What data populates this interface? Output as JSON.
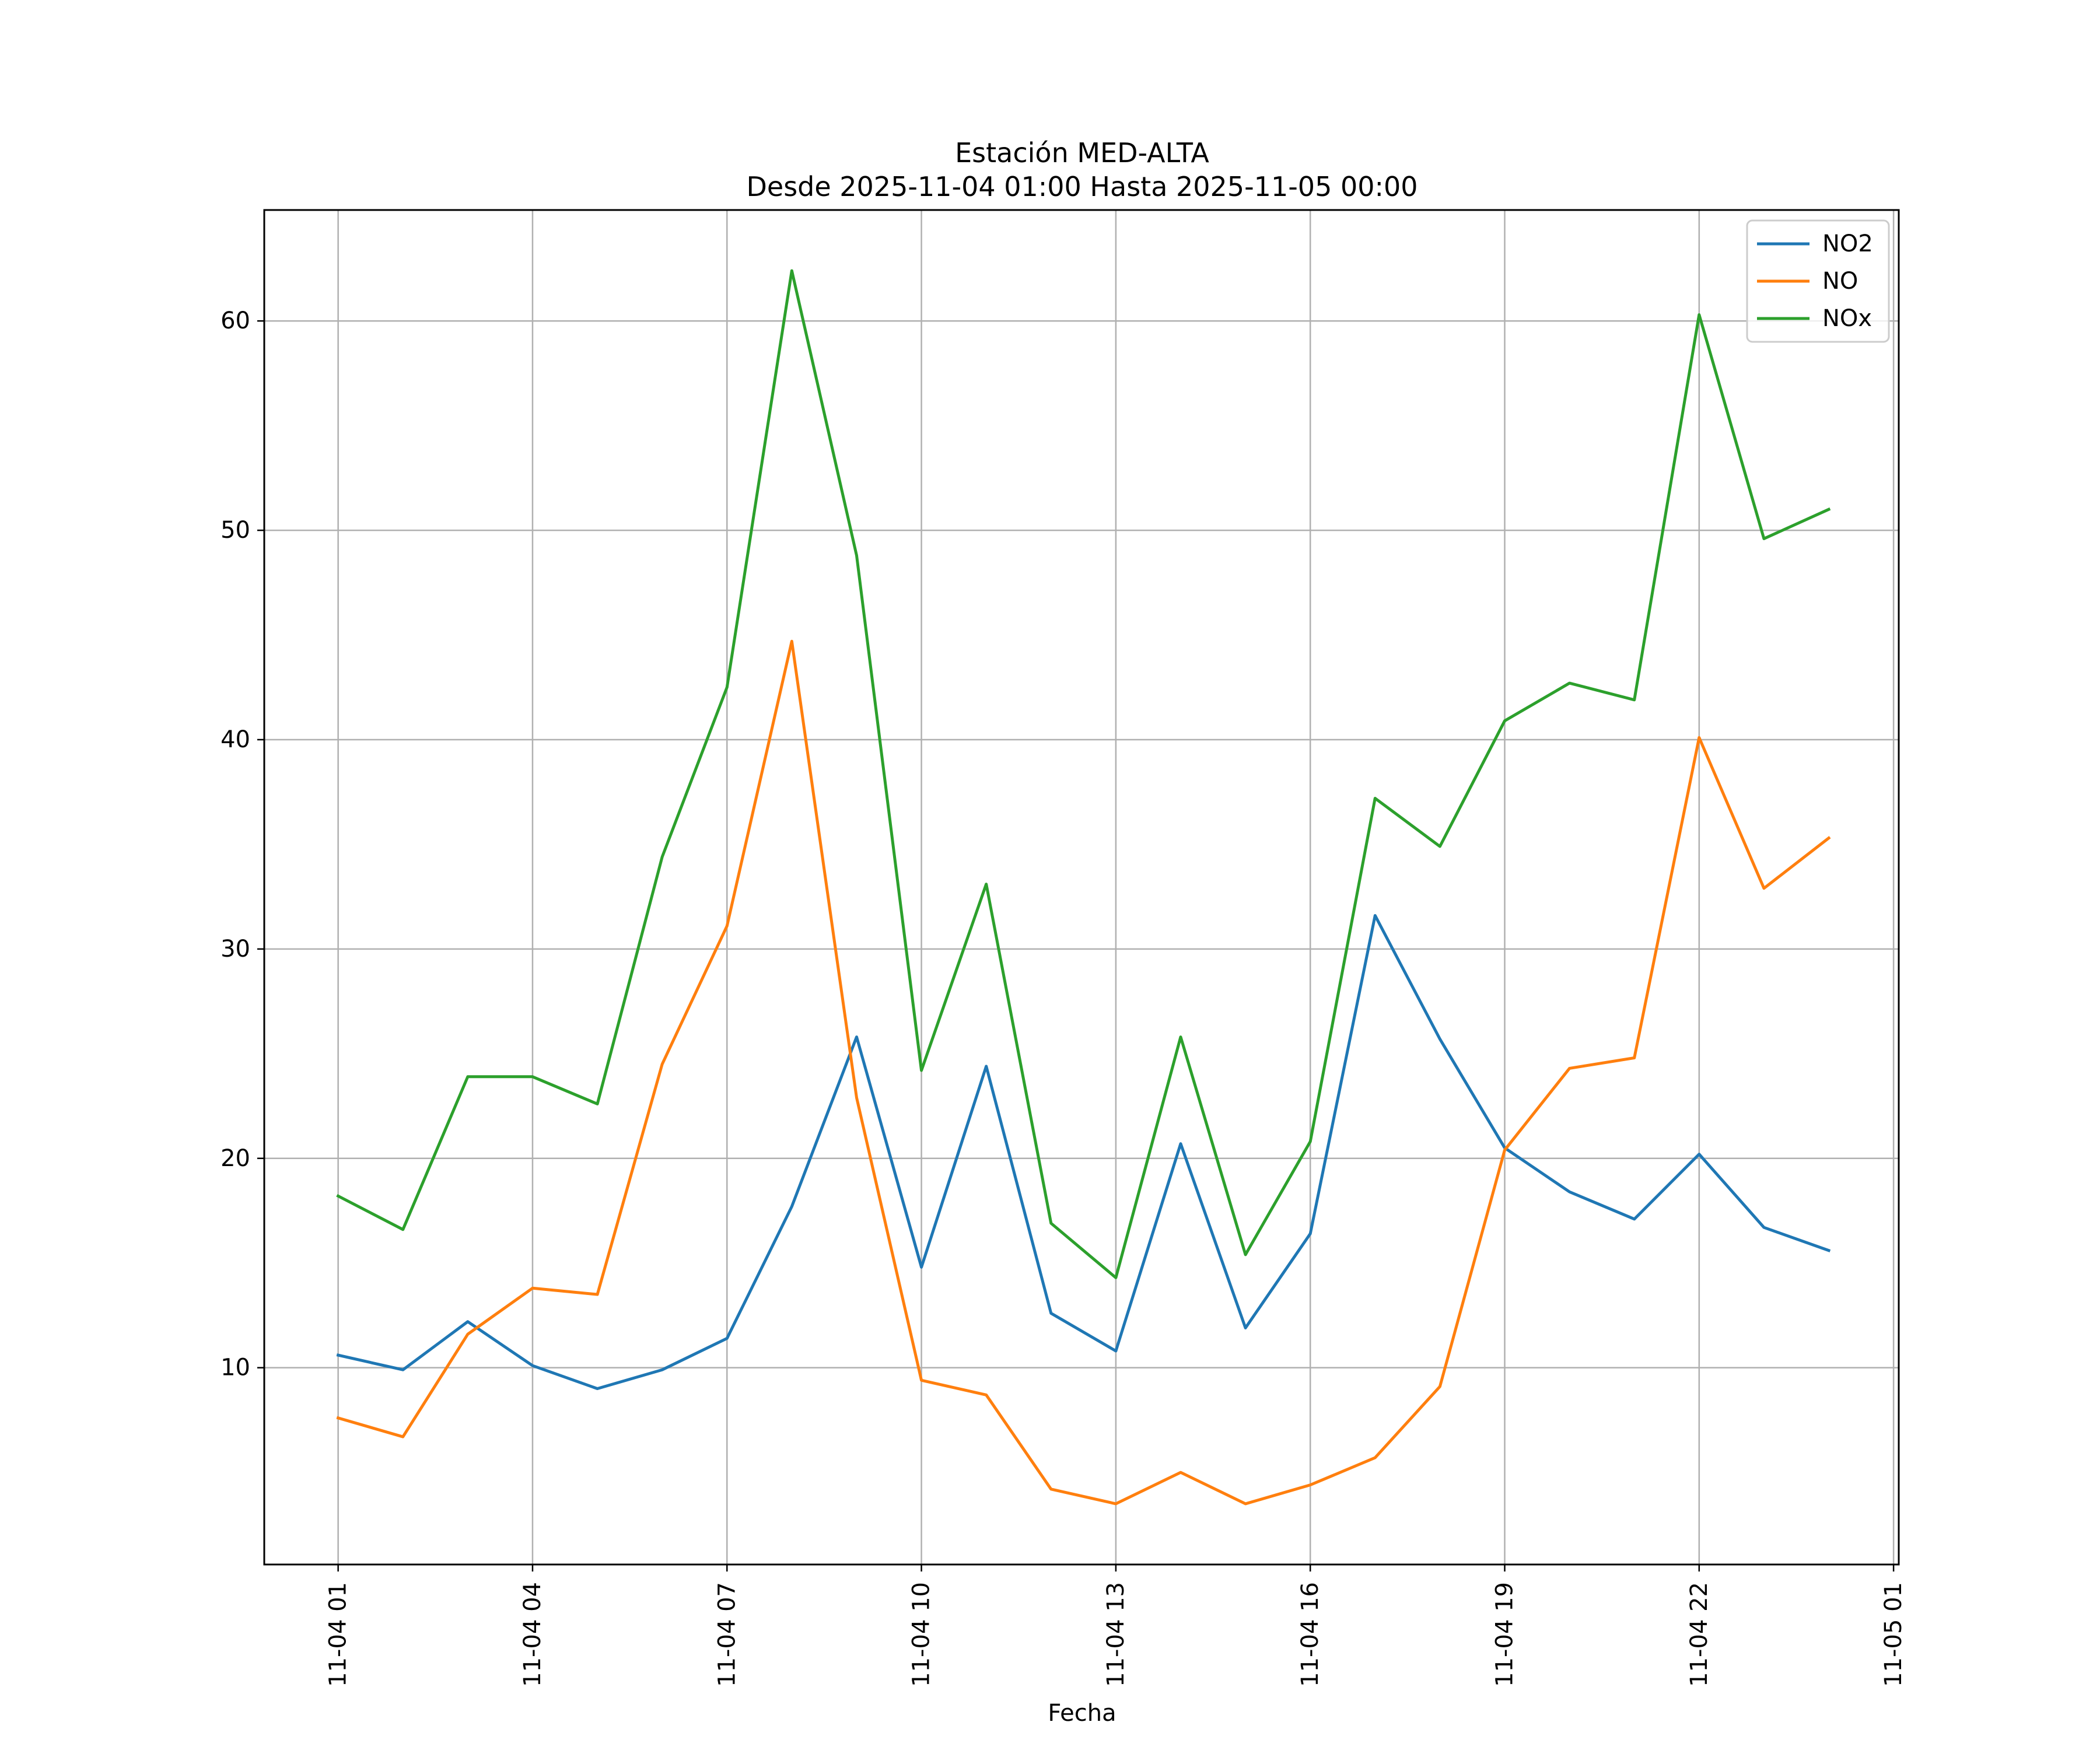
{
  "chart_data": {
    "type": "line",
    "title": "Estación MED-ALTA",
    "subtitle": "Desde 2025-11-04 01:00 Hasta 2025-11-05 00:00",
    "xlabel": "Fecha",
    "ylabel": "",
    "x": [
      "11-04 01",
      "11-04 02",
      "11-04 03",
      "11-04 04",
      "11-04 05",
      "11-04 06",
      "11-04 07",
      "11-04 08",
      "11-04 09",
      "11-04 10",
      "11-04 11",
      "11-04 12",
      "11-04 13",
      "11-04 14",
      "11-04 15",
      "11-04 16",
      "11-04 17",
      "11-04 18",
      "11-04 19",
      "11-04 20",
      "11-04 21",
      "11-04 22",
      "11-04 23",
      "11-05 00"
    ],
    "x_hours": [
      0,
      1,
      2,
      3,
      4,
      5,
      6,
      7,
      8,
      9,
      10,
      11,
      12,
      13,
      14,
      15,
      16,
      17,
      18,
      19,
      20,
      21,
      22,
      23
    ],
    "xlim_hours": [
      -1.14,
      24.08
    ],
    "x_ticks": [
      {
        "hour": 0,
        "label": "11-04 01"
      },
      {
        "hour": 3,
        "label": "11-04 04"
      },
      {
        "hour": 6,
        "label": "11-04 07"
      },
      {
        "hour": 9,
        "label": "11-04 10"
      },
      {
        "hour": 12,
        "label": "11-04 13"
      },
      {
        "hour": 15,
        "label": "11-04 16"
      },
      {
        "hour": 18,
        "label": "11-04 19"
      },
      {
        "hour": 21,
        "label": "11-04 22"
      },
      {
        "hour": 24,
        "label": "11-05 01"
      }
    ],
    "ylim": [
      0.6,
      65.3
    ],
    "y_ticks": [
      10,
      20,
      30,
      40,
      50,
      60
    ],
    "grid": true,
    "legend_position": "top-right",
    "series": [
      {
        "name": "NO2",
        "color": "#1f77b4",
        "values": [
          10.6,
          9.9,
          12.2,
          10.1,
          9.0,
          9.9,
          11.4,
          17.7,
          25.8,
          14.8,
          24.4,
          12.6,
          10.8,
          20.7,
          11.9,
          16.4,
          31.6,
          25.7,
          20.5,
          18.4,
          17.1,
          20.2,
          16.7,
          15.6
        ]
      },
      {
        "name": "NO",
        "color": "#ff7f0e",
        "values": [
          7.6,
          6.7,
          11.6,
          13.8,
          13.5,
          24.5,
          31.1,
          44.7,
          22.9,
          9.4,
          8.7,
          4.2,
          3.5,
          5.0,
          3.5,
          4.4,
          5.7,
          9.1,
          20.4,
          24.3,
          24.8,
          40.1,
          32.9,
          35.3
        ]
      },
      {
        "name": "NOx",
        "color": "#2ca02c",
        "values": [
          18.2,
          16.6,
          23.9,
          23.9,
          22.6,
          34.4,
          42.5,
          62.4,
          48.8,
          24.2,
          33.1,
          16.9,
          14.3,
          25.8,
          15.4,
          20.8,
          37.2,
          34.9,
          40.9,
          42.7,
          41.9,
          60.3,
          49.6,
          51.0
        ]
      }
    ]
  }
}
